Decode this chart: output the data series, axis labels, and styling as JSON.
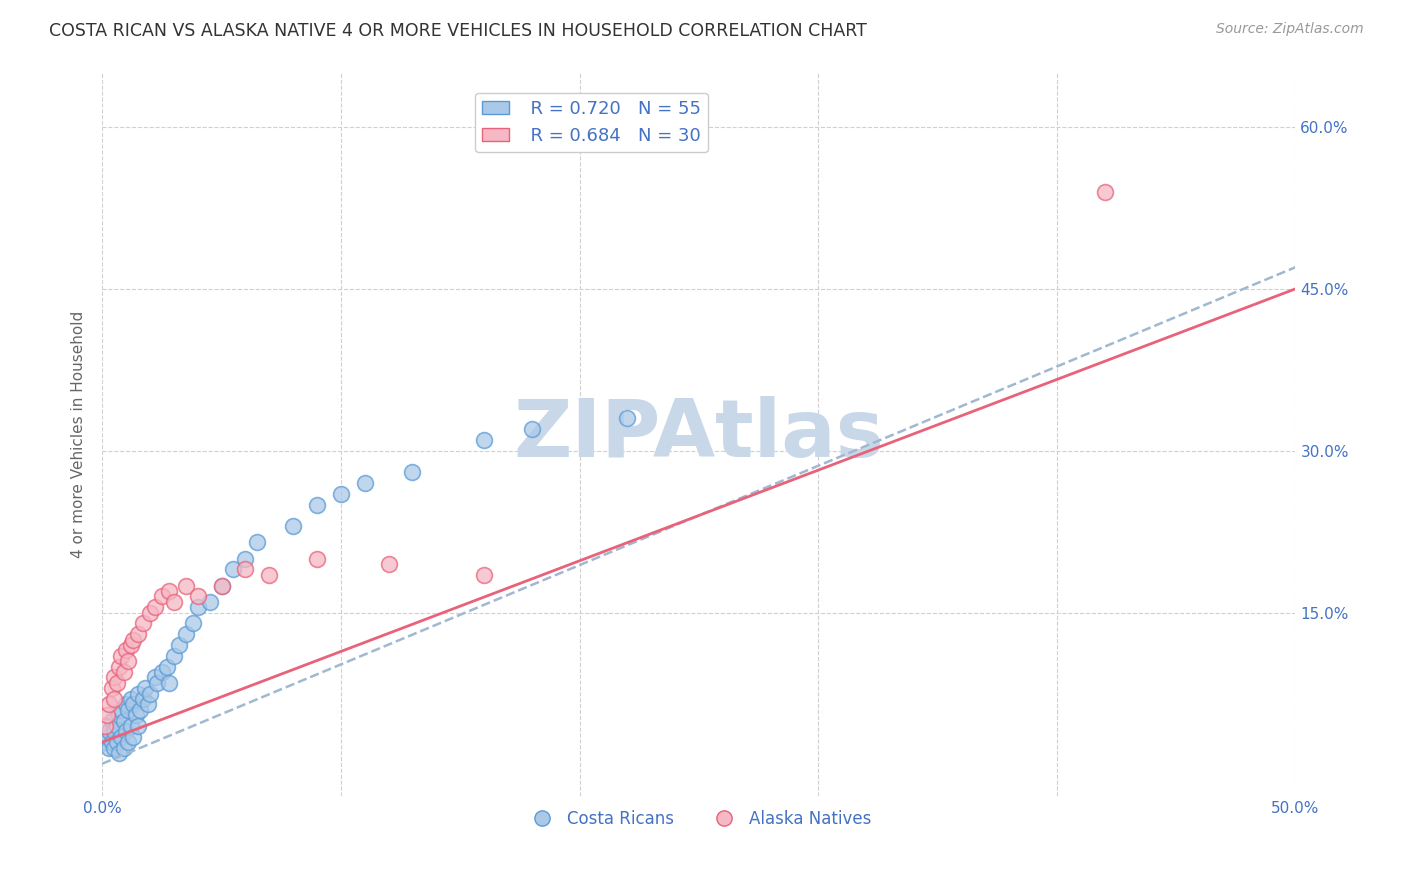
{
  "title": "COSTA RICAN VS ALASKA NATIVE 4 OR MORE VEHICLES IN HOUSEHOLD CORRELATION CHART",
  "source": "Source: ZipAtlas.com",
  "ylabel": "4 or more Vehicles in Household",
  "xlim": [
    0.0,
    0.5
  ],
  "ylim": [
    -0.02,
    0.65
  ],
  "xticks": [
    0.0,
    0.1,
    0.2,
    0.3,
    0.4,
    0.5
  ],
  "xtick_labels": [
    "0.0%",
    "",
    "",
    "",
    "",
    "50.0%"
  ],
  "yticks": [
    0.15,
    0.3,
    0.45,
    0.6
  ],
  "ytick_labels": [
    "15.0%",
    "30.0%",
    "45.0%",
    "60.0%"
  ],
  "grid_color": "#d0d0d0",
  "background_color": "#ffffff",
  "watermark_text": "ZIPAtlas",
  "watermark_color": "#c8d8e8",
  "legend_r_blue": "R = 0.720",
  "legend_n_blue": "N = 55",
  "legend_r_pink": "R = 0.684",
  "legend_n_pink": "N = 30",
  "blue_color": "#aac9e8",
  "pink_color": "#f5b8c4",
  "blue_line_color": "#5b9bd5",
  "pink_line_color": "#e8627a",
  "label_color": "#4472c4",
  "costa_ricans_label": "Costa Ricans",
  "alaska_natives_label": "Alaska Natives",
  "costa_ricans_x": [
    0.001,
    0.002,
    0.003,
    0.003,
    0.004,
    0.004,
    0.005,
    0.005,
    0.006,
    0.006,
    0.007,
    0.007,
    0.008,
    0.008,
    0.009,
    0.009,
    0.01,
    0.01,
    0.011,
    0.011,
    0.012,
    0.012,
    0.013,
    0.013,
    0.014,
    0.015,
    0.015,
    0.016,
    0.017,
    0.018,
    0.019,
    0.02,
    0.022,
    0.023,
    0.025,
    0.027,
    0.028,
    0.03,
    0.032,
    0.035,
    0.038,
    0.04,
    0.045,
    0.05,
    0.055,
    0.06,
    0.065,
    0.08,
    0.09,
    0.1,
    0.11,
    0.13,
    0.16,
    0.18,
    0.22
  ],
  "costa_ricans_y": [
    0.03,
    0.035,
    0.025,
    0.04,
    0.03,
    0.05,
    0.025,
    0.04,
    0.03,
    0.045,
    0.02,
    0.055,
    0.035,
    0.06,
    0.025,
    0.05,
    0.04,
    0.065,
    0.03,
    0.06,
    0.045,
    0.07,
    0.035,
    0.065,
    0.055,
    0.045,
    0.075,
    0.06,
    0.07,
    0.08,
    0.065,
    0.075,
    0.09,
    0.085,
    0.095,
    0.1,
    0.085,
    0.11,
    0.12,
    0.13,
    0.14,
    0.155,
    0.16,
    0.175,
    0.19,
    0.2,
    0.215,
    0.23,
    0.25,
    0.26,
    0.27,
    0.28,
    0.31,
    0.32,
    0.33
  ],
  "alaska_natives_x": [
    0.001,
    0.002,
    0.003,
    0.004,
    0.005,
    0.005,
    0.006,
    0.007,
    0.008,
    0.009,
    0.01,
    0.011,
    0.012,
    0.013,
    0.015,
    0.017,
    0.02,
    0.022,
    0.025,
    0.028,
    0.03,
    0.035,
    0.04,
    0.05,
    0.06,
    0.07,
    0.09,
    0.12,
    0.16,
    0.42
  ],
  "alaska_natives_y": [
    0.045,
    0.055,
    0.065,
    0.08,
    0.07,
    0.09,
    0.085,
    0.1,
    0.11,
    0.095,
    0.115,
    0.105,
    0.12,
    0.125,
    0.13,
    0.14,
    0.15,
    0.155,
    0.165,
    0.17,
    0.16,
    0.175,
    0.165,
    0.175,
    0.19,
    0.185,
    0.2,
    0.195,
    0.185,
    0.54
  ],
  "blue_line_x": [
    0.0,
    0.5
  ],
  "blue_line_y": [
    0.01,
    0.47
  ],
  "pink_line_x": [
    0.0,
    0.5
  ],
  "pink_line_y": [
    0.03,
    0.45
  ]
}
